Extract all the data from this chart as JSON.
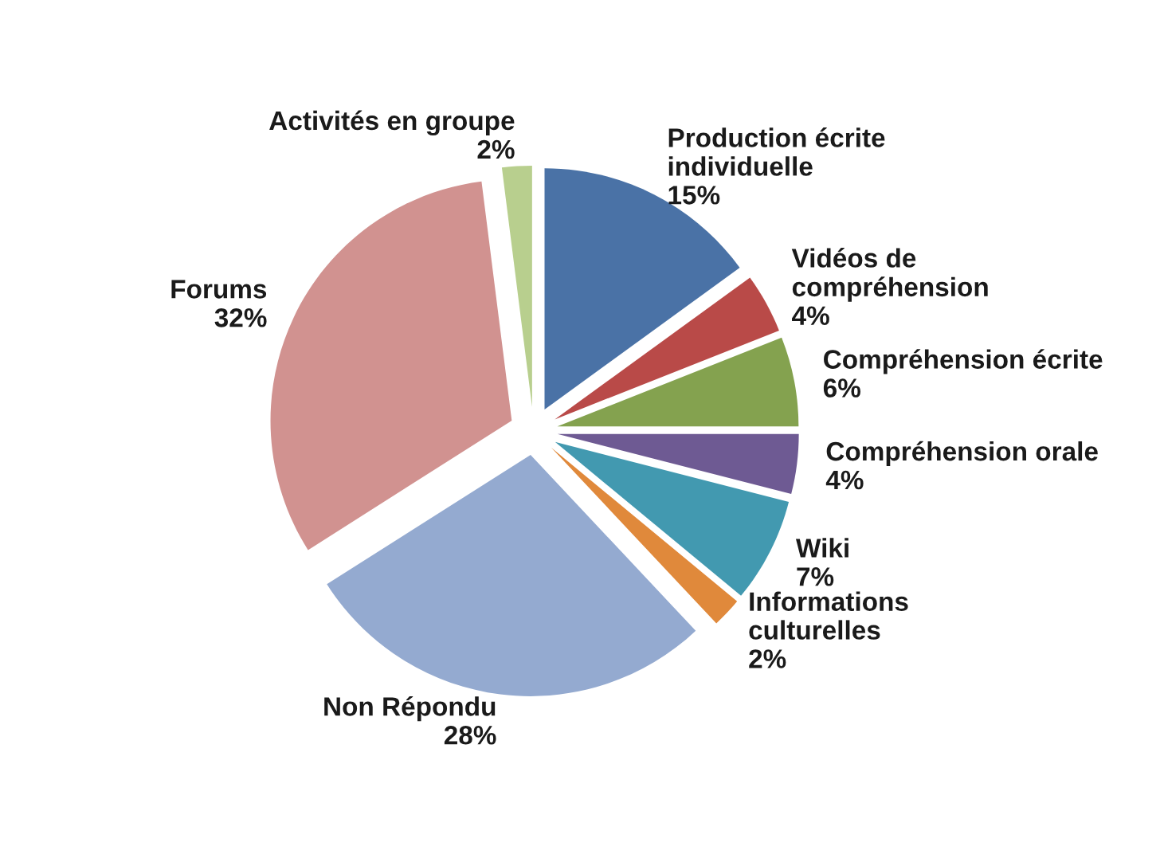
{
  "chart_data": {
    "type": "pie",
    "categories": [
      "Production écrite\nindividuelle",
      "Vidéos de\ncompréhension",
      "Compréhension écrite",
      "Compréhension orale",
      "Wiki",
      "Informations\nculturelles",
      "Non Répondu",
      "Forums",
      "Activités en groupe"
    ],
    "values": [
      15,
      4,
      6,
      4,
      7,
      2,
      28,
      32,
      2
    ],
    "value_labels": [
      "15%",
      "4%",
      "6%",
      "4%",
      "7%",
      "2%",
      "28%",
      "32%",
      "2%"
    ],
    "colors": [
      "#4a72a6",
      "#b94a48",
      "#84a24f",
      "#6e5a93",
      "#4299b0",
      "#e0893b",
      "#94aad0",
      "#d19290",
      "#b8cf8e"
    ],
    "legend": false
  }
}
